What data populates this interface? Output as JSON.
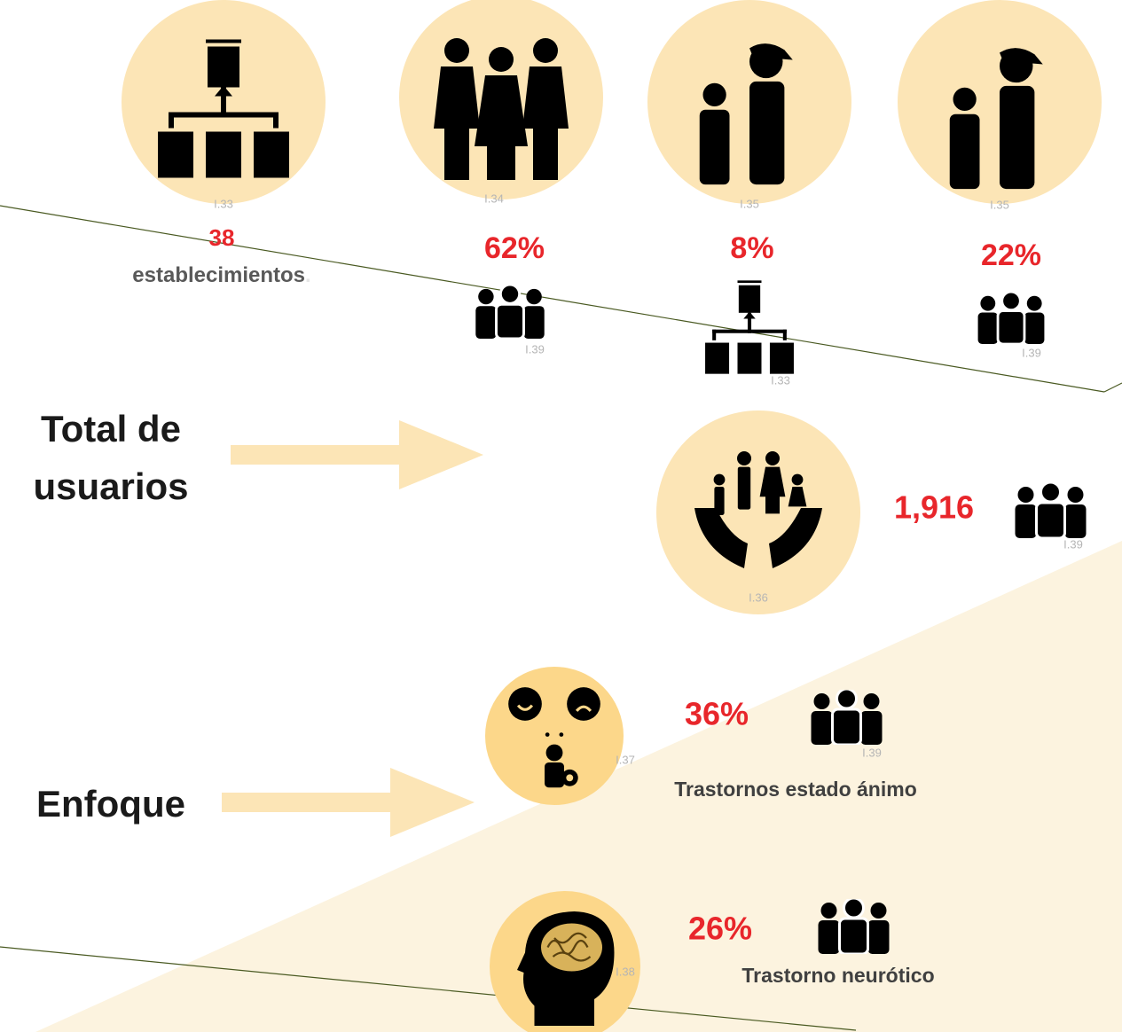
{
  "top_stats": [
    {
      "value": "38",
      "label": "establecimientos",
      "suffix": ".",
      "ref": "I.33"
    },
    {
      "value": "62%",
      "ref": "I.34",
      "icon_ref": "I.39"
    },
    {
      "value": "8%",
      "ref": "I.35",
      "icon_ref": "I.33"
    },
    {
      "value": "22%",
      "ref": "I.35",
      "icon_ref": "I.39"
    }
  ],
  "users": {
    "title_line1": "Total de",
    "title_line2": "usuarios",
    "value": "1,916",
    "ref": "I.36",
    "icon_ref": "I.39"
  },
  "focus": {
    "title": "Enfoque",
    "items": [
      {
        "value": "36%",
        "label": "Trastornos estado ánimo",
        "ref": "I.37",
        "icon_ref": "I.39"
      },
      {
        "value": "26%",
        "label": "Trastorno neurótico",
        "ref": "I.38"
      }
    ]
  }
}
